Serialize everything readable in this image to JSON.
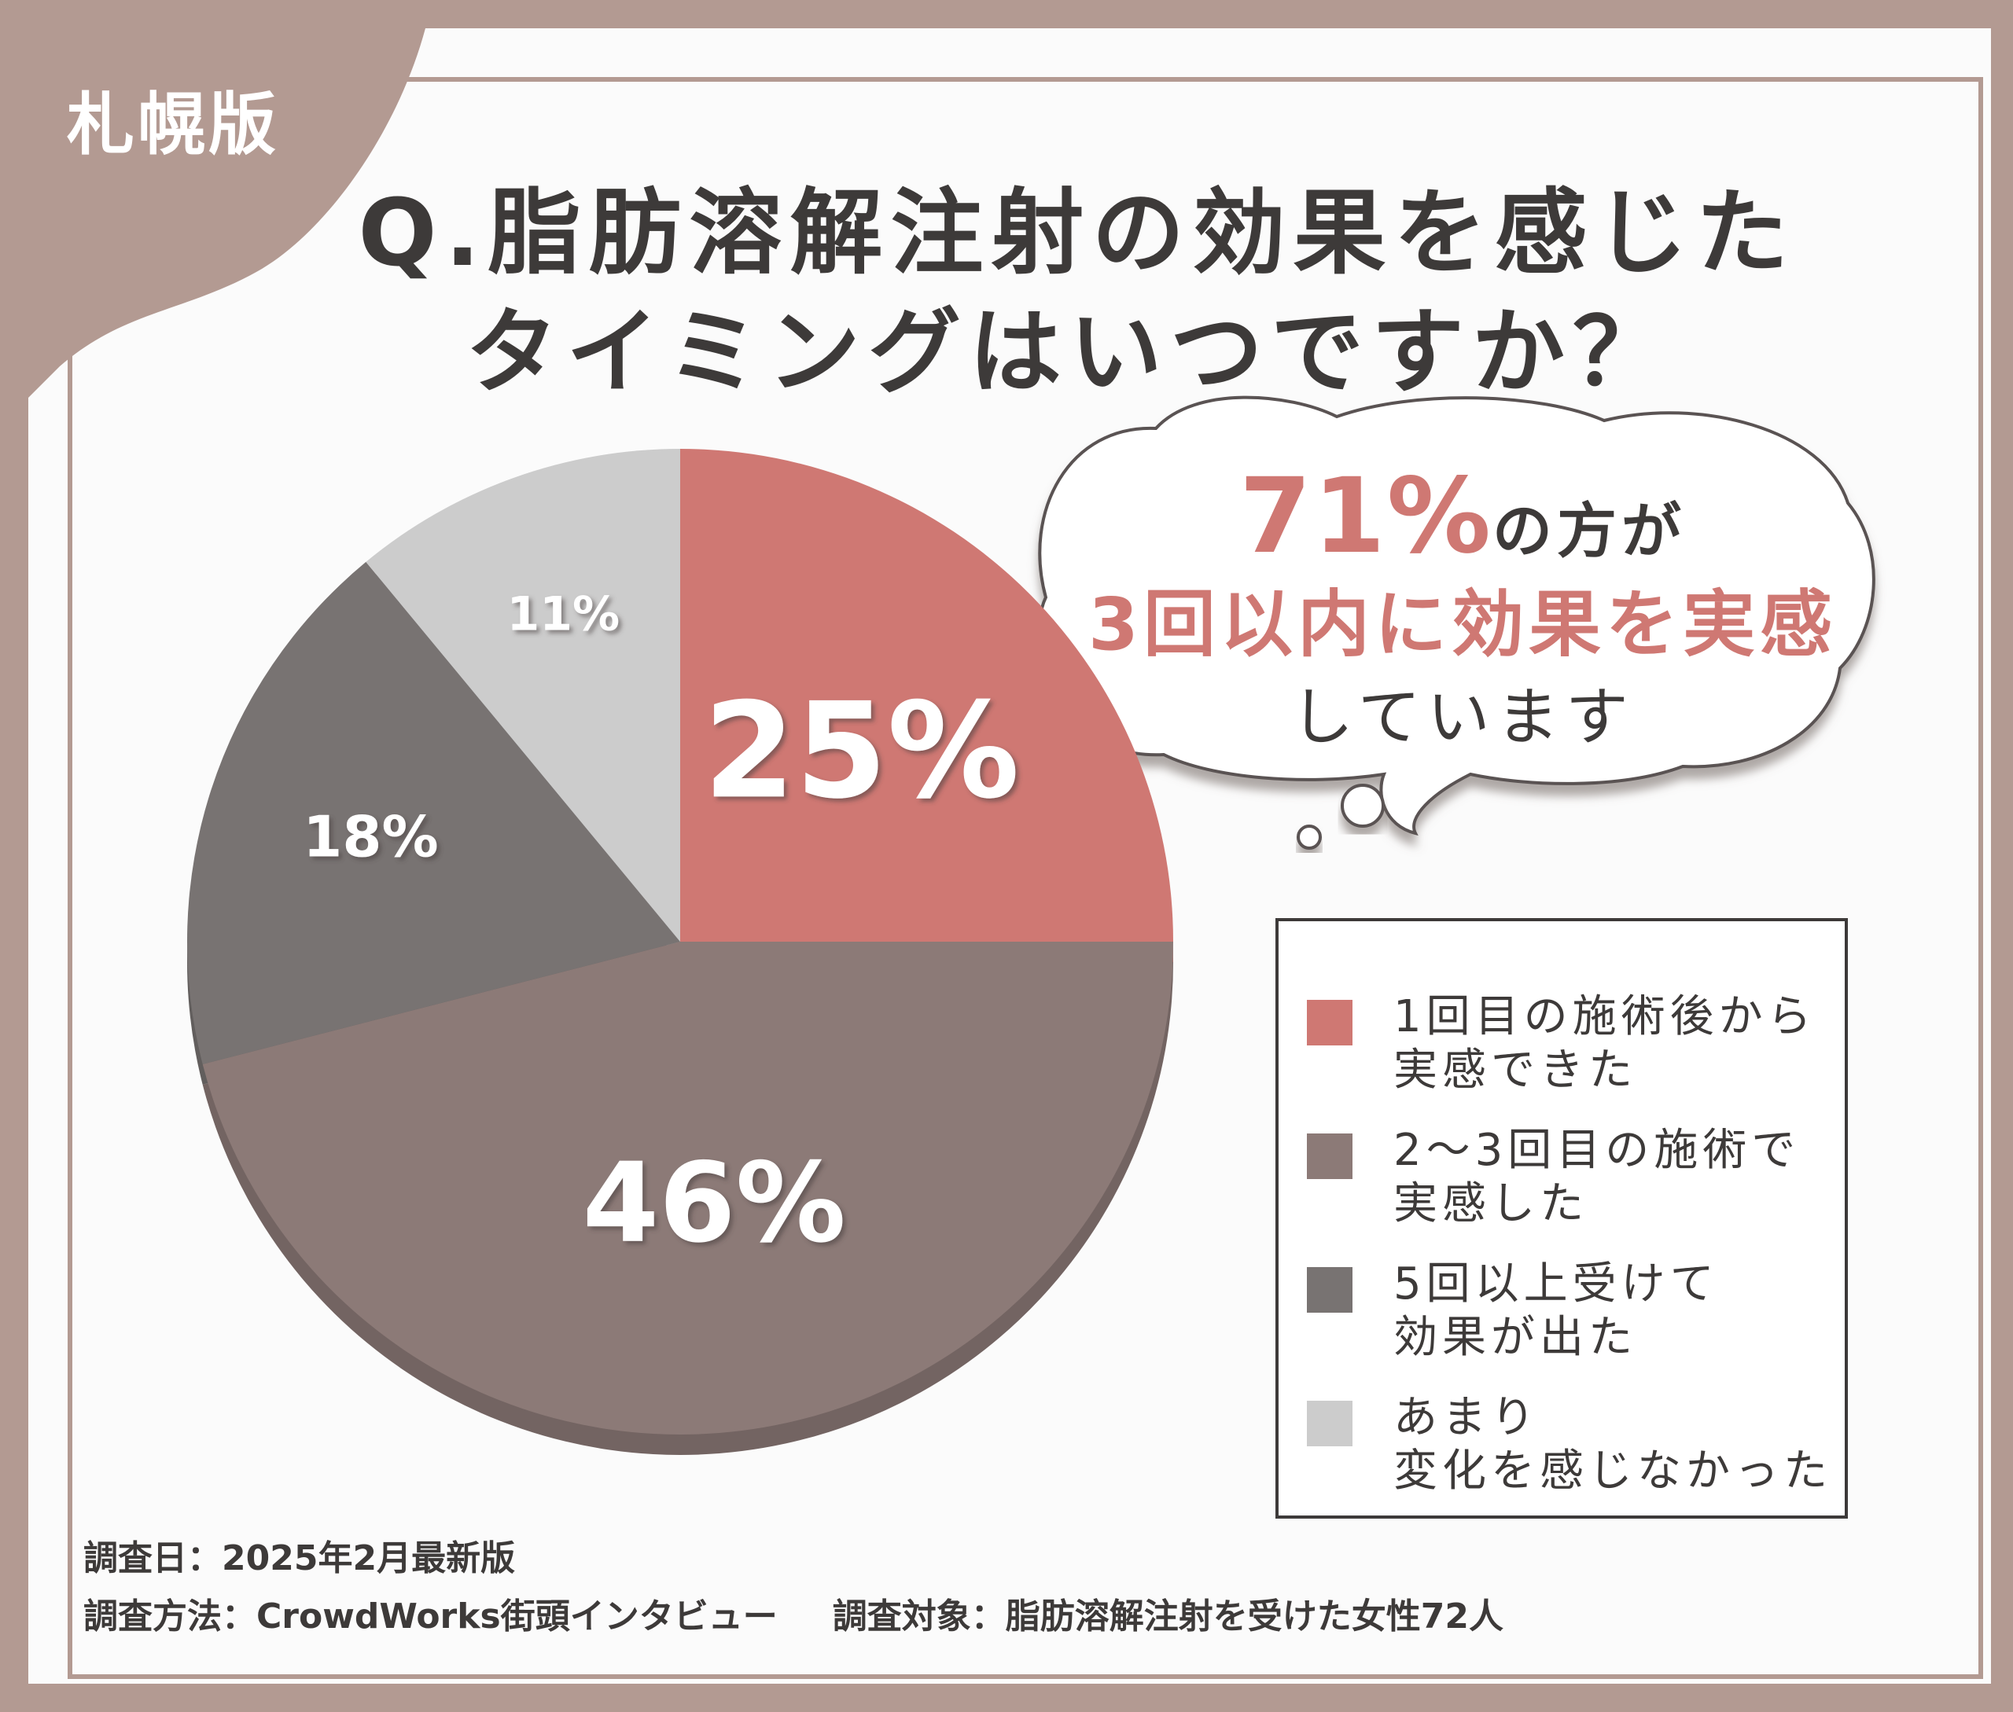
{
  "badge": "札幌版",
  "title": {
    "line1": "Q.脂肪溶解注射の効果を感じた",
    "line2": "タイミングはいつですか？"
  },
  "bubble": {
    "highlight": "71%",
    "line1_rest": "の方が",
    "line2": "3回以内に効果を実感",
    "line3": "しています"
  },
  "legend": [
    {
      "label_1": "1回目の施術後から",
      "label_2": "実感できた"
    },
    {
      "label_1": "2〜3回目の施術で",
      "label_2": "実感した"
    },
    {
      "label_1": "5回以上受けて",
      "label_2": "効果が出た"
    },
    {
      "label_1": "あまり",
      "label_2": "変化を感じなかった"
    }
  ],
  "footer": {
    "date": "調査日：2025年2月最新版",
    "method": "調査方法：CrowdWorks街頭インタビュー",
    "target": "調査対象：脂肪溶解注射を受けた女性72人"
  },
  "colors": {
    "frame": "#b39a92",
    "text": "#3d3a39",
    "accent": "#cf7873"
  },
  "chart_data": {
    "type": "pie",
    "unit": "%",
    "categories": [
      "1回目の施術後から実感できた",
      "2〜3回目の施術で実感した",
      "5回以上受けて効果が出た",
      "あまり変化を感じなかった"
    ],
    "values": [
      25,
      46,
      18,
      11
    ],
    "labels": [
      "25%",
      "46%",
      "18%",
      "11%"
    ],
    "colors": [
      "#cf7873",
      "#8c7a77",
      "#787372",
      "#cccccc"
    ],
    "start_angle": "12 o'clock",
    "direction": "clockwise",
    "legend_position": "right"
  }
}
